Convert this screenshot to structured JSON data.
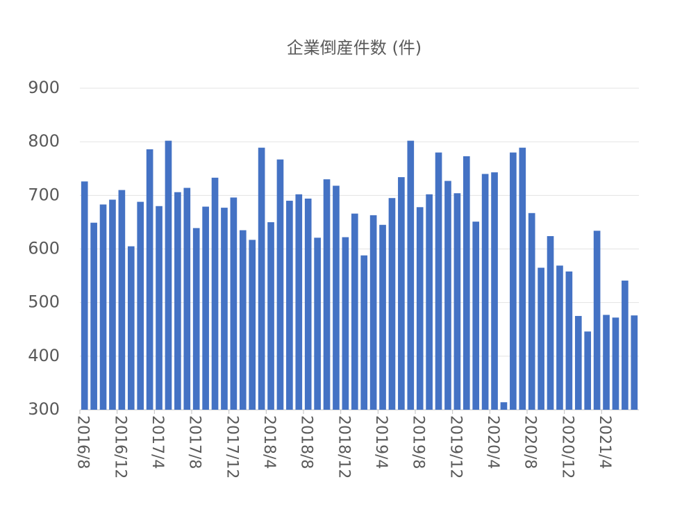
{
  "chart_data": {
    "type": "bar",
    "title": "企業倒産件数 (件)",
    "categories": [
      "2016/8",
      null,
      null,
      null,
      "2016/12",
      null,
      null,
      null,
      "2017/4",
      null,
      null,
      null,
      "2017/8",
      null,
      null,
      null,
      "2017/12",
      null,
      null,
      null,
      "2018/4",
      null,
      null,
      null,
      "2018/8",
      null,
      null,
      null,
      "2018/12",
      null,
      null,
      null,
      "2019/4",
      null,
      null,
      null,
      "2019/8",
      null,
      null,
      null,
      "2019/12",
      null,
      null,
      null,
      "2020/4",
      null,
      null,
      null,
      "2020/8",
      null,
      null,
      null,
      "2020/12",
      null,
      null,
      null,
      "2021/4",
      null,
      null,
      null
    ],
    "values": [
      726,
      649,
      683,
      692,
      710,
      605,
      688,
      786,
      680,
      802,
      706,
      714,
      639,
      679,
      733,
      677,
      696,
      635,
      617,
      789,
      650,
      767,
      690,
      702,
      694,
      621,
      730,
      718,
      622,
      666,
      588,
      663,
      645,
      695,
      734,
      802,
      678,
      702,
      780,
      727,
      704,
      773,
      651,
      740,
      743,
      314,
      780,
      789,
      667,
      565,
      624,
      569,
      558,
      475,
      446,
      634,
      477,
      472,
      541,
      476
    ],
    "color": "#4472c4",
    "ylim": [
      300,
      900
    ],
    "yticks": [
      300,
      400,
      500,
      600,
      700,
      800,
      900
    ],
    "grid": true
  }
}
